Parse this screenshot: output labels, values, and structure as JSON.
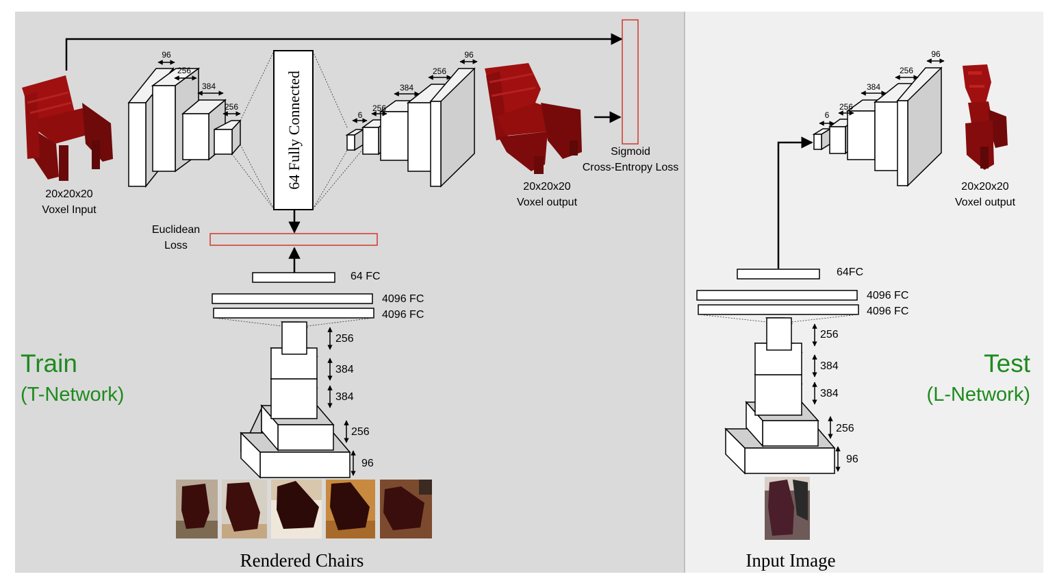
{
  "colors": {
    "train_panel_bg": "#dadada",
    "test_panel_bg": "#f0f0f0",
    "panel_title": "#1e8a1e",
    "loss_box_stroke": "#d0392b",
    "voxel_red": "#8f0d0d"
  },
  "train": {
    "title": "Train",
    "subtitle": "(T-Network)",
    "input_caption_1": "20x20x20",
    "input_caption_2": "Voxel Input",
    "output_caption_1": "20x20x20",
    "output_caption_2": "Voxel output",
    "fully_connected_label": "64 Fully Connected",
    "sigmoid_loss_1": "Sigmoid",
    "sigmoid_loss_2": "Cross-Entropy Loss",
    "euclidean_loss_1": "Euclidean",
    "euclidean_loss_2": "Loss",
    "encoder_widths": [
      "96",
      "256",
      "384",
      "256"
    ],
    "decoder_widths": [
      "6",
      "256",
      "384",
      "256",
      "96"
    ],
    "fc_labels": [
      "64 FC",
      "4096 FC",
      "4096 FC"
    ],
    "conv_heights": [
      "256",
      "384",
      "384",
      "256",
      "96"
    ],
    "bottom_caption": "Rendered Chairs",
    "photos": [
      "chair-render-1",
      "chair-render-2",
      "chair-render-3",
      "chair-render-4",
      "chair-render-5"
    ]
  },
  "test": {
    "title": "Test",
    "subtitle": "(L-Network)",
    "output_caption_1": "20x20x20",
    "output_caption_2": "Voxel output",
    "decoder_widths": [
      "6",
      "256",
      "384",
      "256",
      "96"
    ],
    "fc_labels": [
      "64FC",
      "4096 FC",
      "4096 FC"
    ],
    "conv_heights": [
      "256",
      "384",
      "384",
      "256",
      "96"
    ],
    "bottom_caption": "Input Image",
    "photo": "input-chair-photo"
  }
}
